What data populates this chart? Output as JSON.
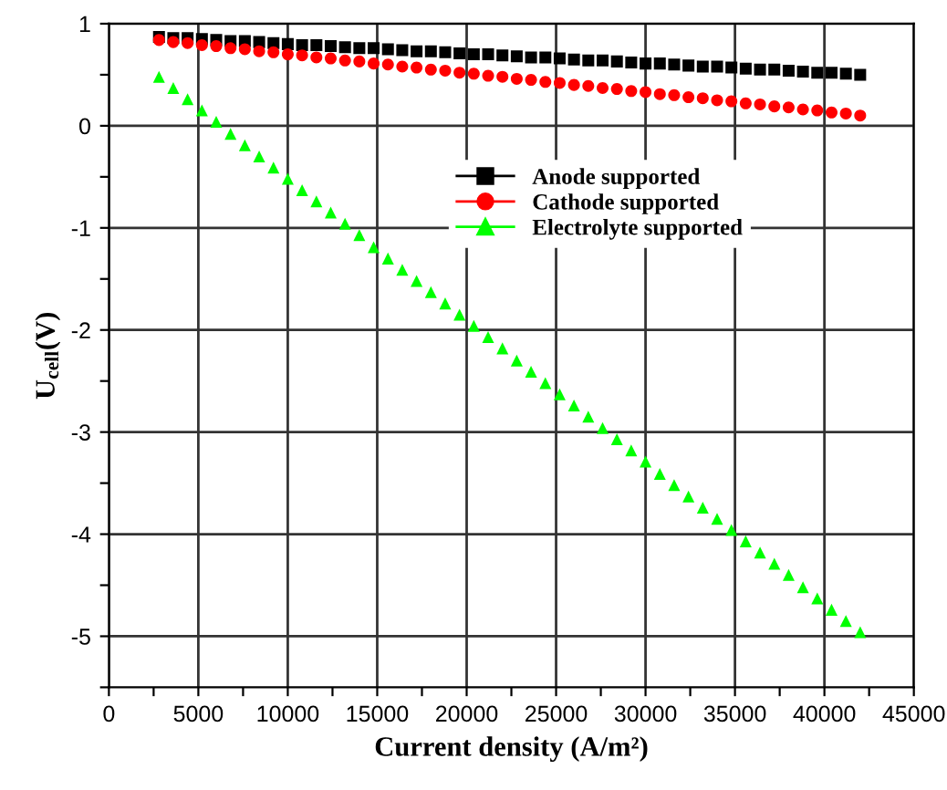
{
  "chart_data": {
    "type": "scatter",
    "xlabel": "Current density (A/m²)",
    "ylabel": "U$_{cell}$(V)",
    "x": [
      2800,
      3600,
      4400,
      5200,
      6000,
      6800,
      7600,
      8400,
      9200,
      10000,
      10800,
      11600,
      12400,
      13200,
      14000,
      14800,
      15600,
      16400,
      17200,
      18000,
      18800,
      19600,
      20400,
      21200,
      22000,
      22800,
      23600,
      24400,
      25200,
      26000,
      26800,
      27600,
      28400,
      29200,
      30000,
      30800,
      31600,
      32400,
      33200,
      34000,
      34800,
      35600,
      36400,
      37200,
      38000,
      38800,
      39600,
      40400,
      41200,
      42000
    ],
    "series": [
      {
        "name": "Anode supported",
        "color": "#000000",
        "marker": "square",
        "values": [
          0.87,
          0.86,
          0.86,
          0.85,
          0.84,
          0.83,
          0.83,
          0.82,
          0.81,
          0.8,
          0.79,
          0.79,
          0.78,
          0.77,
          0.76,
          0.76,
          0.75,
          0.74,
          0.73,
          0.73,
          0.72,
          0.71,
          0.7,
          0.7,
          0.69,
          0.68,
          0.67,
          0.67,
          0.66,
          0.65,
          0.64,
          0.64,
          0.63,
          0.62,
          0.61,
          0.61,
          0.6,
          0.59,
          0.58,
          0.58,
          0.57,
          0.56,
          0.55,
          0.55,
          0.54,
          0.53,
          0.52,
          0.52,
          0.51,
          0.5
        ]
      },
      {
        "name": "Cathode supported",
        "color": "#ff0000",
        "marker": "circle",
        "values": [
          0.84,
          0.82,
          0.81,
          0.79,
          0.78,
          0.76,
          0.75,
          0.73,
          0.72,
          0.7,
          0.69,
          0.67,
          0.66,
          0.64,
          0.63,
          0.61,
          0.6,
          0.58,
          0.57,
          0.55,
          0.54,
          0.52,
          0.51,
          0.49,
          0.48,
          0.46,
          0.45,
          0.43,
          0.42,
          0.4,
          0.39,
          0.37,
          0.36,
          0.34,
          0.33,
          0.31,
          0.3,
          0.28,
          0.27,
          0.25,
          0.24,
          0.22,
          0.21,
          0.19,
          0.18,
          0.16,
          0.15,
          0.13,
          0.12,
          0.1
        ]
      },
      {
        "name": "Electrolyte supported",
        "color": "#00ff00",
        "marker": "triangle",
        "values": [
          0.48,
          0.37,
          0.26,
          0.15,
          0.04,
          -0.08,
          -0.19,
          -0.3,
          -0.41,
          -0.52,
          -0.63,
          -0.74,
          -0.85,
          -0.96,
          -1.07,
          -1.19,
          -1.3,
          -1.41,
          -1.52,
          -1.63,
          -1.74,
          -1.85,
          -1.96,
          -2.07,
          -2.18,
          -2.3,
          -2.41,
          -2.52,
          -2.63,
          -2.74,
          -2.85,
          -2.96,
          -3.07,
          -3.18,
          -3.29,
          -3.41,
          -3.52,
          -3.63,
          -3.74,
          -3.85,
          -3.96,
          -4.07,
          -4.18,
          -4.29,
          -4.4,
          -4.52,
          -4.63,
          -4.74,
          -4.85,
          -4.96
        ]
      }
    ],
    "xlim": [
      0,
      45000
    ],
    "xticks": [
      0,
      {
        "value": 2500,
        "label": null
      },
      5000,
      {
        "value": 7500,
        "label": null
      },
      10000,
      {
        "value": 12500,
        "label": null
      },
      15000,
      {
        "value": 17500,
        "label": null
      },
      20000,
      {
        "value": 22500,
        "label": null
      },
      25000,
      {
        "value": 27500,
        "label": null
      },
      30000,
      {
        "value": 32500,
        "label": null
      },
      35000,
      {
        "value": 37500,
        "label": null
      },
      40000,
      {
        "value": 42500,
        "label": null
      },
      45000
    ],
    "ylim": [
      -5.5,
      1
    ],
    "yticks": [
      {
        "value": -5.5,
        "label": null
      },
      -5,
      {
        "value": -4.5,
        "label": null
      },
      -4,
      {
        "value": -3.5,
        "label": null
      },
      -3,
      {
        "value": -2.5,
        "label": null
      },
      -2,
      {
        "value": -1.5,
        "label": null
      },
      -1,
      {
        "value": -0.5,
        "label": null
      },
      0,
      {
        "value": 0.5,
        "label": null
      },
      1
    ],
    "grid": true,
    "legend": "top right"
  }
}
